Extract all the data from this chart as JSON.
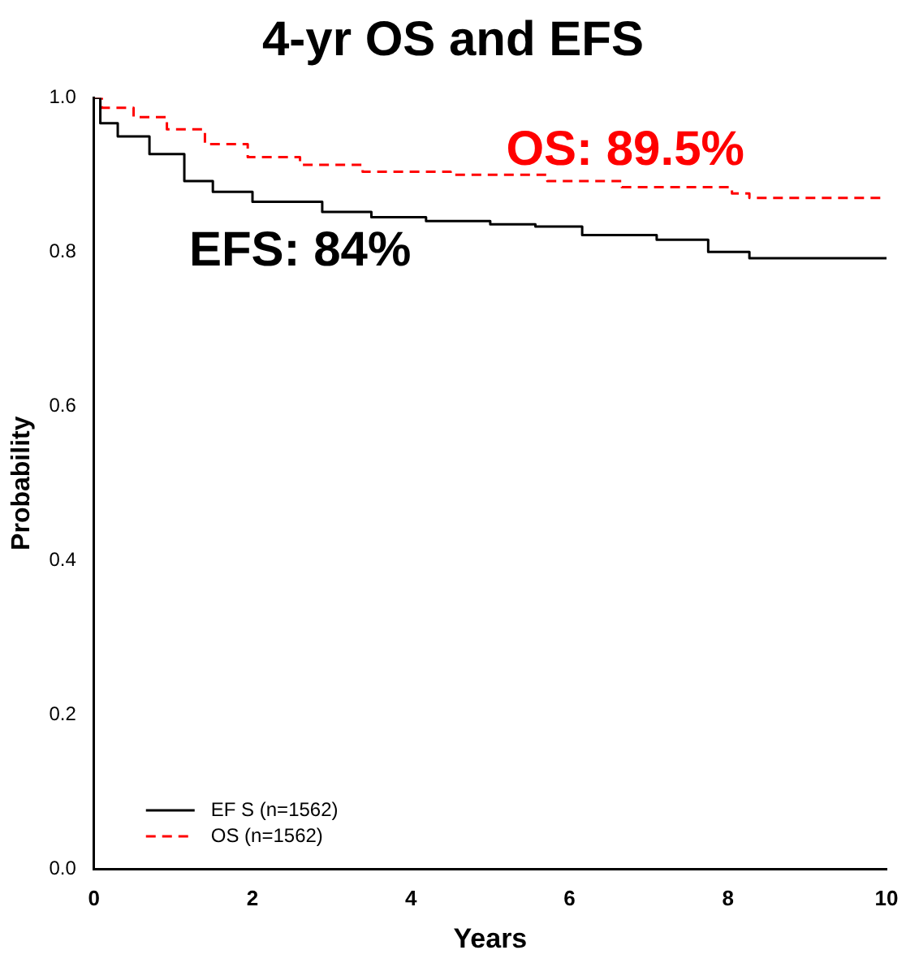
{
  "chart_data": {
    "type": "step",
    "title": "4-yr OS and EFS",
    "xlabel": "Years",
    "ylabel": "Probability",
    "xlim": [
      0,
      10
    ],
    "xticks": [
      0,
      2,
      4,
      6,
      8,
      10
    ],
    "ylim": [
      0,
      1.0
    ],
    "yticks": [
      {
        "value": 0,
        "label": "0.0"
      },
      {
        "value": 0.2,
        "label": "0.2"
      },
      {
        "value": 0.4,
        "label": "0.4"
      },
      {
        "value": 0.6,
        "label": "0.6"
      },
      {
        "value": 0.8,
        "label": "0.8"
      },
      {
        "value": 1,
        "label": "1.0"
      }
    ],
    "grid": false,
    "legend": "bottom left",
    "marker": "none",
    "series": [
      {
        "name": "EF S (n=1562)",
        "color": "#000000",
        "line_style": "solid",
        "x": [
          0,
          0.08,
          0.3,
          0.7,
          1.14,
          1.5,
          2.0,
          2.88,
          3.5,
          4.19,
          5.0,
          5.57,
          6.16,
          7.1,
          7.75,
          8.27,
          10
        ],
        "values": [
          1,
          0.967,
          0.95,
          0.927,
          0.892,
          0.878,
          0.865,
          0.852,
          0.845,
          0.84,
          0.836,
          0.833,
          0.822,
          0.816,
          0.8,
          0.792,
          0.792
        ]
      },
      {
        "name": "OS (n=1562)",
        "color": "#ff0000",
        "line_style": "dashed",
        "x": [
          0,
          0.1,
          0.5,
          0.92,
          1.4,
          1.94,
          2.6,
          3.39,
          4.5,
          5.72,
          6.66,
          8.05,
          8.27,
          10
        ],
        "values": [
          1,
          0.987,
          0.975,
          0.959,
          0.94,
          0.923,
          0.913,
          0.904,
          0.9,
          0.892,
          0.884,
          0.876,
          0.87,
          0.87
        ]
      }
    ],
    "annotations": [
      "EFS: 84%",
      "OS: 89.5%"
    ]
  }
}
